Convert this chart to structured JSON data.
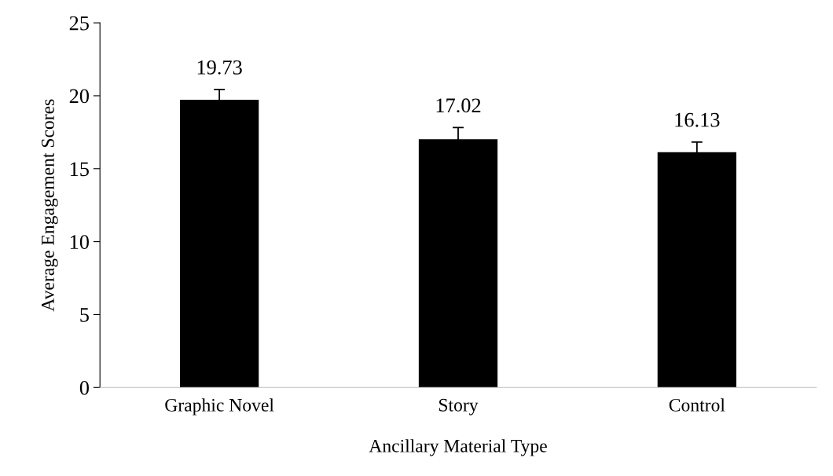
{
  "chart_data": {
    "type": "bar",
    "xlabel": "Ancillary Material Type",
    "ylabel": "Average Engagement Scores",
    "categories": [
      "Graphic Novel",
      "Story",
      "Control"
    ],
    "values": [
      19.73,
      17.02,
      16.13
    ],
    "errors": [
      0.7,
      0.8,
      0.7
    ],
    "color": "#000000",
    "data_labels": true,
    "ylim": [
      0,
      25
    ],
    "yticks": [
      0,
      5,
      10,
      15,
      20,
      25
    ],
    "grid": false,
    "legend": false
  }
}
